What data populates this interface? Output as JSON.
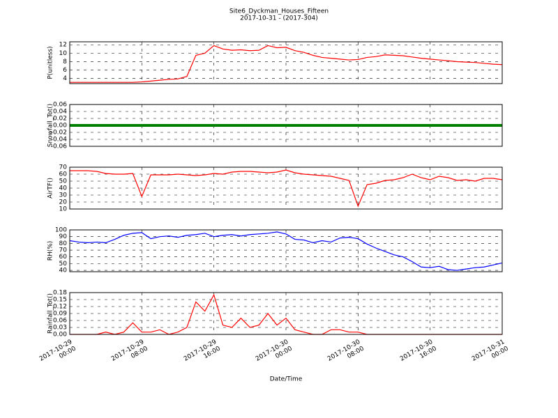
{
  "chart_data": [
    {
      "type": "line",
      "title": "Site6_Dyckman_Houses_Fifteen",
      "subtitle": "2017-10-31 - (2017-304)",
      "ylabel": "P(unitless)",
      "xlim": [
        "2017-10-29 00:00",
        "2017-10-31 00:00"
      ],
      "xticks": [
        "2017-10-29 00:00",
        "2017-10-29 08:00",
        "2017-10-29 16:00",
        "2017-10-30 00:00",
        "2017-10-30 08:00",
        "2017-10-30 16:00",
        "2017-10-31 00:00"
      ],
      "ylim": [
        2.8,
        12.7
      ],
      "yticks": [
        4,
        6,
        8,
        10,
        12
      ],
      "grid": true,
      "x": [
        "2017-10-29 00:00",
        "2017-10-29 01:00",
        "2017-10-29 02:00",
        "2017-10-29 03:00",
        "2017-10-29 04:00",
        "2017-10-29 05:00",
        "2017-10-29 06:00",
        "2017-10-29 07:00",
        "2017-10-29 08:00",
        "2017-10-29 09:00",
        "2017-10-29 10:00",
        "2017-10-29 11:00",
        "2017-10-29 12:00",
        "2017-10-29 13:00",
        "2017-10-29 14:00",
        "2017-10-29 15:00",
        "2017-10-29 16:00",
        "2017-10-29 17:00",
        "2017-10-29 18:00",
        "2017-10-29 19:00",
        "2017-10-29 20:00",
        "2017-10-29 21:00",
        "2017-10-29 22:00",
        "2017-10-29 23:00",
        "2017-10-30 00:00",
        "2017-10-30 01:00",
        "2017-10-30 02:00",
        "2017-10-30 03:00",
        "2017-10-30 04:00",
        "2017-10-30 05:00",
        "2017-10-30 06:00",
        "2017-10-30 07:00",
        "2017-10-30 08:00",
        "2017-10-30 09:00",
        "2017-10-30 10:00",
        "2017-10-30 11:00",
        "2017-10-30 12:00",
        "2017-10-30 13:00",
        "2017-10-30 14:00",
        "2017-10-30 15:00",
        "2017-10-30 16:00",
        "2017-10-30 17:00",
        "2017-10-30 18:00",
        "2017-10-30 19:00",
        "2017-10-30 20:00",
        "2017-10-30 21:00",
        "2017-10-30 22:00",
        "2017-10-30 23:00",
        "2017-10-31 00:00"
      ],
      "series": [
        {
          "color": "#ff0000",
          "values": [
            3.1,
            3.1,
            3.1,
            3.1,
            3.1,
            3.1,
            3.1,
            3.1,
            3.2,
            3.4,
            3.6,
            3.8,
            3.9,
            4.5,
            9.5,
            10.0,
            11.8,
            11.0,
            10.7,
            10.8,
            10.6,
            10.7,
            11.8,
            11.3,
            11.4,
            10.6,
            10.2,
            9.5,
            9.0,
            8.8,
            8.6,
            8.4,
            8.5,
            9.0,
            9.2,
            9.6,
            9.5,
            9.4,
            9.1,
            8.8,
            8.6,
            8.4,
            8.2,
            8.0,
            7.9,
            7.8,
            7.6,
            7.4,
            7.3
          ]
        }
      ]
    },
    {
      "type": "line",
      "ylabel": "Snowfall_Tot()",
      "xlim": [
        "2017-10-29 00:00",
        "2017-10-31 00:00"
      ],
      "xticks": [
        "2017-10-29 00:00",
        "2017-10-29 08:00",
        "2017-10-29 16:00",
        "2017-10-30 00:00",
        "2017-10-30 08:00",
        "2017-10-30 16:00",
        "2017-10-31 00:00"
      ],
      "ylim": [
        -0.06,
        0.06
      ],
      "yticks": [
        -0.06,
        -0.04,
        -0.02,
        {
          "value": 0,
          "label": "0.00"
        },
        0.02,
        0.04,
        0.06
      ],
      "grid": true,
      "x": [
        "2017-10-29 00:00",
        "2017-10-29 01:00",
        "2017-10-29 02:00",
        "2017-10-29 03:00",
        "2017-10-29 04:00",
        "2017-10-29 05:00",
        "2017-10-29 06:00",
        "2017-10-29 07:00",
        "2017-10-29 08:00",
        "2017-10-29 09:00",
        "2017-10-29 10:00",
        "2017-10-29 11:00",
        "2017-10-29 12:00",
        "2017-10-29 13:00",
        "2017-10-29 14:00",
        "2017-10-29 15:00",
        "2017-10-29 16:00",
        "2017-10-29 17:00",
        "2017-10-29 18:00",
        "2017-10-29 19:00",
        "2017-10-29 20:00",
        "2017-10-29 21:00",
        "2017-10-29 22:00",
        "2017-10-29 23:00",
        "2017-10-30 00:00",
        "2017-10-30 01:00",
        "2017-10-30 02:00",
        "2017-10-30 03:00",
        "2017-10-30 04:00",
        "2017-10-30 05:00",
        "2017-10-30 06:00",
        "2017-10-30 07:00",
        "2017-10-30 08:00",
        "2017-10-30 09:00",
        "2017-10-30 10:00",
        "2017-10-30 11:00",
        "2017-10-30 12:00",
        "2017-10-30 13:00",
        "2017-10-30 14:00",
        "2017-10-30 15:00",
        "2017-10-30 16:00",
        "2017-10-30 17:00",
        "2017-10-30 18:00",
        "2017-10-30 19:00",
        "2017-10-30 20:00",
        "2017-10-30 21:00",
        "2017-10-30 22:00",
        "2017-10-30 23:00",
        "2017-10-31 00:00"
      ],
      "series": [
        {
          "color": "#008000",
          "values": [
            0,
            0,
            0,
            0,
            0,
            0,
            0,
            0,
            0,
            0,
            0,
            0,
            0,
            0,
            0,
            0,
            0,
            0,
            0,
            0,
            0,
            0,
            0,
            0,
            0,
            0,
            0,
            0,
            0,
            0,
            0,
            0,
            0,
            0,
            0,
            0,
            0,
            0,
            0,
            0,
            0,
            0,
            0,
            0,
            0,
            0,
            0,
            0,
            0
          ]
        }
      ]
    },
    {
      "type": "line",
      "ylabel": "AirTF()",
      "xlim": [
        "2017-10-29 00:00",
        "2017-10-31 00:00"
      ],
      "xticks": [
        "2017-10-29 00:00",
        "2017-10-29 08:00",
        "2017-10-29 16:00",
        "2017-10-30 00:00",
        "2017-10-30 08:00",
        "2017-10-30 16:00",
        "2017-10-31 00:00"
      ],
      "ylim": [
        10,
        70
      ],
      "yticks": [
        10,
        20,
        30,
        40,
        50,
        60,
        70
      ],
      "grid": true,
      "x": [
        "2017-10-29 00:00",
        "2017-10-29 01:00",
        "2017-10-29 02:00",
        "2017-10-29 03:00",
        "2017-10-29 04:00",
        "2017-10-29 05:00",
        "2017-10-29 06:00",
        "2017-10-29 07:00",
        "2017-10-29 08:00",
        "2017-10-29 09:00",
        "2017-10-29 10:00",
        "2017-10-29 11:00",
        "2017-10-29 12:00",
        "2017-10-29 13:00",
        "2017-10-29 14:00",
        "2017-10-29 15:00",
        "2017-10-29 16:00",
        "2017-10-29 17:00",
        "2017-10-29 18:00",
        "2017-10-29 19:00",
        "2017-10-29 20:00",
        "2017-10-29 21:00",
        "2017-10-29 22:00",
        "2017-10-29 23:00",
        "2017-10-30 00:00",
        "2017-10-30 01:00",
        "2017-10-30 02:00",
        "2017-10-30 03:00",
        "2017-10-30 04:00",
        "2017-10-30 05:00",
        "2017-10-30 06:00",
        "2017-10-30 07:00",
        "2017-10-30 08:00",
        "2017-10-30 09:00",
        "2017-10-30 10:00",
        "2017-10-30 11:00",
        "2017-10-30 12:00",
        "2017-10-30 13:00",
        "2017-10-30 14:00",
        "2017-10-30 15:00",
        "2017-10-30 16:00",
        "2017-10-30 17:00",
        "2017-10-30 18:00",
        "2017-10-30 19:00",
        "2017-10-30 20:00",
        "2017-10-30 21:00",
        "2017-10-30 22:00",
        "2017-10-30 23:00",
        "2017-10-31 00:00"
      ],
      "series": [
        {
          "color": "#ff0000",
          "values": [
            65,
            65,
            65,
            64,
            61,
            60,
            60,
            61,
            28,
            59,
            59,
            59,
            60,
            59,
            58,
            59,
            61,
            60,
            63,
            64,
            64,
            63,
            62,
            63,
            66,
            62,
            60,
            59,
            58,
            57,
            54,
            51,
            14,
            45,
            47,
            51,
            52,
            55,
            60,
            55,
            52,
            57,
            55,
            51,
            52,
            50,
            54,
            54,
            52
          ]
        }
      ]
    },
    {
      "type": "line",
      "ylabel": "RH(%)",
      "xlim": [
        "2017-10-29 00:00",
        "2017-10-31 00:00"
      ],
      "xticks": [
        "2017-10-29 00:00",
        "2017-10-29 08:00",
        "2017-10-29 16:00",
        "2017-10-30 00:00",
        "2017-10-30 08:00",
        "2017-10-30 16:00",
        "2017-10-31 00:00"
      ],
      "ylim": [
        38,
        100
      ],
      "yticks": [
        40,
        50,
        60,
        70,
        80,
        90,
        100
      ],
      "grid": true,
      "x": [
        "2017-10-29 00:00",
        "2017-10-29 01:00",
        "2017-10-29 02:00",
        "2017-10-29 03:00",
        "2017-10-29 04:00",
        "2017-10-29 05:00",
        "2017-10-29 06:00",
        "2017-10-29 07:00",
        "2017-10-29 08:00",
        "2017-10-29 09:00",
        "2017-10-29 10:00",
        "2017-10-29 11:00",
        "2017-10-29 12:00",
        "2017-10-29 13:00",
        "2017-10-29 14:00",
        "2017-10-29 15:00",
        "2017-10-29 16:00",
        "2017-10-29 17:00",
        "2017-10-29 18:00",
        "2017-10-29 19:00",
        "2017-10-29 20:00",
        "2017-10-29 21:00",
        "2017-10-29 22:00",
        "2017-10-29 23:00",
        "2017-10-30 00:00",
        "2017-10-30 01:00",
        "2017-10-30 02:00",
        "2017-10-30 03:00",
        "2017-10-30 04:00",
        "2017-10-30 05:00",
        "2017-10-30 06:00",
        "2017-10-30 07:00",
        "2017-10-30 08:00",
        "2017-10-30 09:00",
        "2017-10-30 10:00",
        "2017-10-30 11:00",
        "2017-10-30 12:00",
        "2017-10-30 13:00",
        "2017-10-30 14:00",
        "2017-10-30 15:00",
        "2017-10-30 16:00",
        "2017-10-30 17:00",
        "2017-10-30 18:00",
        "2017-10-30 19:00",
        "2017-10-30 20:00",
        "2017-10-30 21:00",
        "2017-10-30 22:00",
        "2017-10-30 23:00",
        "2017-10-31 00:00"
      ],
      "series": [
        {
          "color": "#0000ff",
          "values": [
            84,
            82,
            81,
            82,
            81,
            86,
            92,
            95,
            96,
            87,
            90,
            91,
            89,
            92,
            93,
            95,
            90,
            92,
            93,
            91,
            93,
            94,
            95,
            97,
            94,
            86,
            85,
            81,
            84,
            82,
            88,
            89,
            87,
            79,
            73,
            68,
            63,
            60,
            53,
            45,
            44,
            46,
            41,
            40,
            42,
            44,
            45,
            48,
            51
          ]
        }
      ]
    },
    {
      "type": "line",
      "ylabel": "Rainfall_Tot()",
      "xlabel": "Date/Time",
      "xlim": [
        "2017-10-29 00:00",
        "2017-10-31 00:00"
      ],
      "xticks": [
        {
          "value": "2017-10-29 00:00",
          "label": "2017-10-29\n00:00"
        },
        {
          "value": "2017-10-29 08:00",
          "label": "2017-10-29\n08:00"
        },
        {
          "value": "2017-10-29 16:00",
          "label": "2017-10-29\n16:00"
        },
        {
          "value": "2017-10-30 00:00",
          "label": "2017-10-30\n00:00"
        },
        {
          "value": "2017-10-30 08:00",
          "label": "2017-10-30\n08:00"
        },
        {
          "value": "2017-10-30 16:00",
          "label": "2017-10-30\n16:00"
        },
        {
          "value": "2017-10-31 00:00",
          "label": "2017-10-31\n00:00"
        }
      ],
      "ylim": [
        0,
        0.18
      ],
      "yticks": [
        {
          "value": 0,
          "label": "0.00"
        },
        0.03,
        0.06,
        0.09,
        0.12,
        0.15,
        0.18
      ],
      "grid": true,
      "x": [
        "2017-10-29 00:00",
        "2017-10-29 01:00",
        "2017-10-29 02:00",
        "2017-10-29 03:00",
        "2017-10-29 04:00",
        "2017-10-29 05:00",
        "2017-10-29 06:00",
        "2017-10-29 07:00",
        "2017-10-29 08:00",
        "2017-10-29 09:00",
        "2017-10-29 10:00",
        "2017-10-29 11:00",
        "2017-10-29 12:00",
        "2017-10-29 13:00",
        "2017-10-29 14:00",
        "2017-10-29 15:00",
        "2017-10-29 16:00",
        "2017-10-29 17:00",
        "2017-10-29 18:00",
        "2017-10-29 19:00",
        "2017-10-29 20:00",
        "2017-10-29 21:00",
        "2017-10-29 22:00",
        "2017-10-29 23:00",
        "2017-10-30 00:00",
        "2017-10-30 01:00",
        "2017-10-30 02:00",
        "2017-10-30 03:00",
        "2017-10-30 04:00",
        "2017-10-30 05:00",
        "2017-10-30 06:00",
        "2017-10-30 07:00",
        "2017-10-30 08:00",
        "2017-10-30 09:00",
        "2017-10-30 10:00",
        "2017-10-30 11:00",
        "2017-10-30 12:00",
        "2017-10-30 13:00",
        "2017-10-30 14:00",
        "2017-10-30 15:00",
        "2017-10-30 16:00",
        "2017-10-30 17:00",
        "2017-10-30 18:00",
        "2017-10-30 19:00",
        "2017-10-30 20:00",
        "2017-10-30 21:00",
        "2017-10-30 22:00",
        "2017-10-30 23:00",
        "2017-10-31 00:00"
      ],
      "series": [
        {
          "color": "#ff0000",
          "values": [
            0,
            0,
            0,
            0,
            0.01,
            0,
            0.01,
            0.05,
            0.01,
            0.01,
            0.02,
            0,
            0.01,
            0.03,
            0.14,
            0.1,
            0.17,
            0.04,
            0.03,
            0.07,
            0.03,
            0.04,
            0.09,
            0.04,
            0.07,
            0.02,
            0.01,
            0,
            0,
            0.02,
            0.02,
            0.01,
            0.01,
            0,
            0,
            0,
            0,
            0,
            0,
            0,
            0,
            0,
            0,
            0,
            0,
            0,
            0,
            0,
            0
          ]
        }
      ]
    }
  ]
}
